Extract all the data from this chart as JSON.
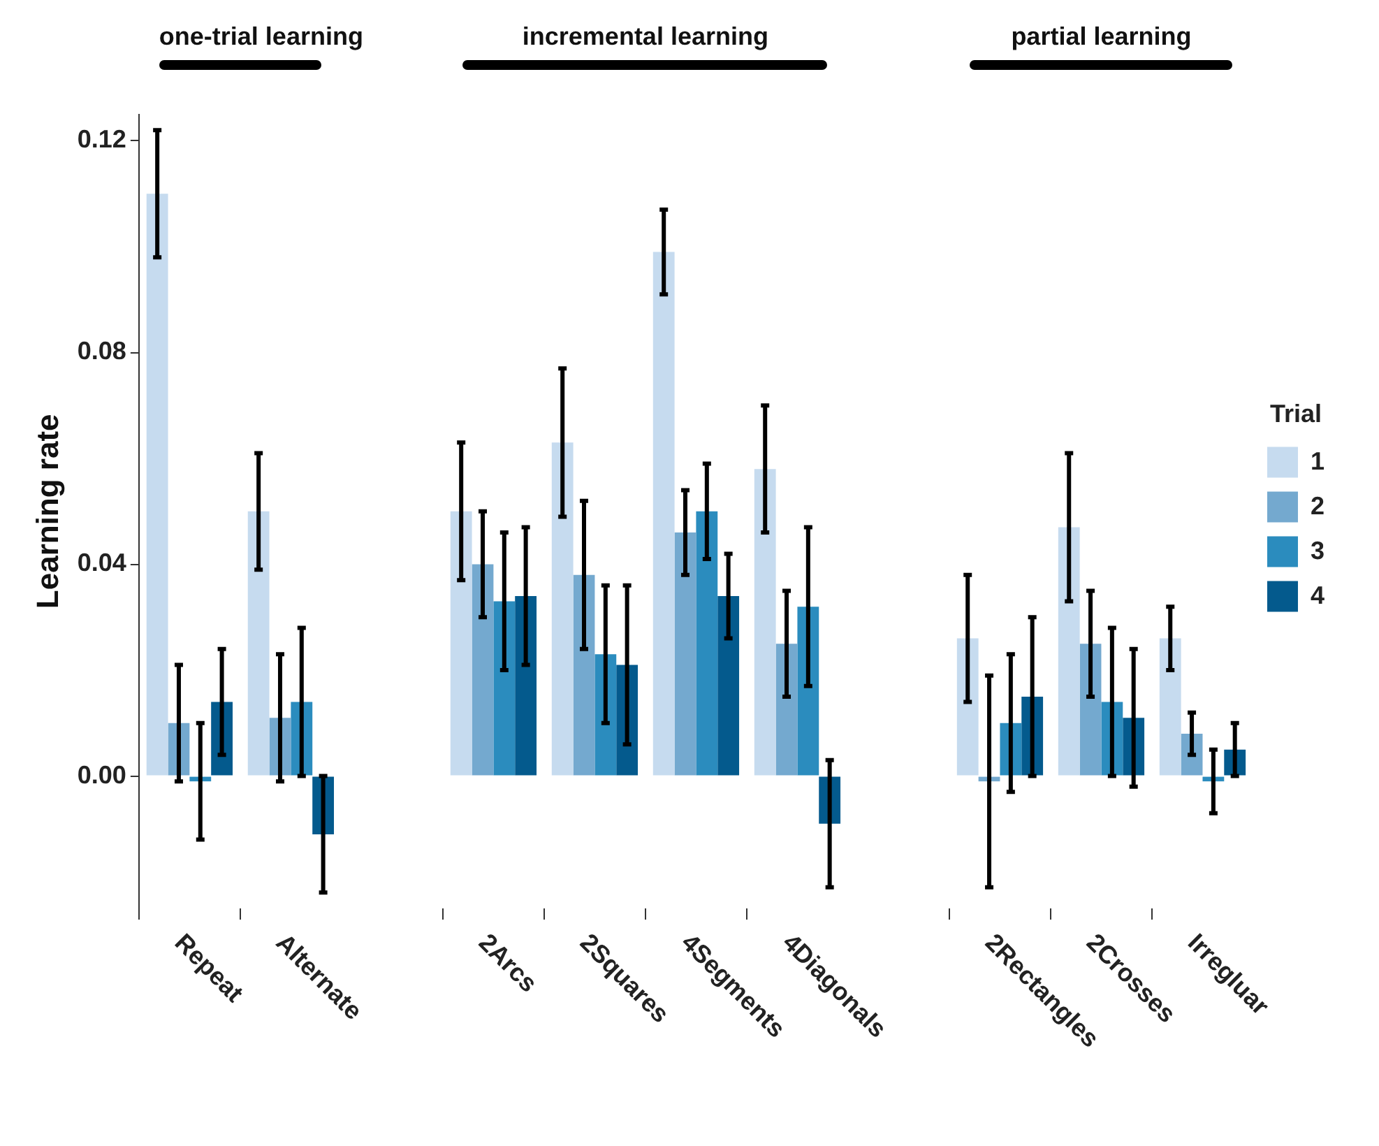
{
  "chart_data": {
    "type": "bar",
    "ylabel": "Learning rate",
    "legend_title": "Trial",
    "legend": "right",
    "categories": [
      "Repeat",
      "Alternate",
      null,
      "2Arcs",
      "2Squares",
      "4Segments",
      "4Diagonals",
      null,
      "2Rectangles",
      "2Crosses",
      "Irregluar"
    ],
    "annotations": [
      "one-trial learning",
      "incremental learning",
      "partial learning"
    ],
    "ylim": [
      -0.025,
      0.125
    ],
    "yticks": [
      {
        "value": 0,
        "label": "0.00"
      },
      {
        "value": 0.04,
        "label": "0.04"
      },
      {
        "value": 0.08,
        "label": "0.08"
      },
      {
        "value": 0.12,
        "label": "0.12"
      }
    ],
    "grid": false,
    "series": [
      {
        "name": "1",
        "color": "#c6dbef",
        "values": [
          0.11,
          0.05,
          null,
          0.05,
          0.063,
          0.099,
          0.058,
          null,
          0.026,
          0.047,
          0.026
        ],
        "errors": [
          0.012,
          0.011,
          null,
          0.013,
          0.014,
          0.008,
          0.012,
          null,
          0.012,
          0.014,
          0.006
        ]
      },
      {
        "name": "2",
        "color": "#74a9cf",
        "values": [
          0.01,
          0.011,
          null,
          0.04,
          0.038,
          0.046,
          0.025,
          null,
          -0.001,
          0.025,
          0.008
        ],
        "errors": [
          0.011,
          0.012,
          null,
          0.01,
          0.014,
          0.008,
          0.01,
          null,
          0.02,
          0.01,
          0.004
        ]
      },
      {
        "name": "3",
        "color": "#2b8cbe",
        "values": [
          -0.001,
          0.014,
          null,
          0.033,
          0.023,
          0.05,
          0.032,
          null,
          0.01,
          0.014,
          -0.001
        ],
        "errors": [
          0.011,
          0.014,
          null,
          0.013,
          0.013,
          0.009,
          0.015,
          null,
          0.013,
          0.014,
          0.006
        ]
      },
      {
        "name": "4",
        "color": "#045a8d",
        "values": [
          0.014,
          -0.011,
          null,
          0.034,
          0.021,
          0.034,
          -0.009,
          null,
          0.015,
          0.011,
          0.005
        ],
        "errors": [
          0.01,
          0.011,
          null,
          0.013,
          0.015,
          0.008,
          0.012,
          null,
          0.015,
          0.013,
          0.005
        ]
      }
    ]
  }
}
